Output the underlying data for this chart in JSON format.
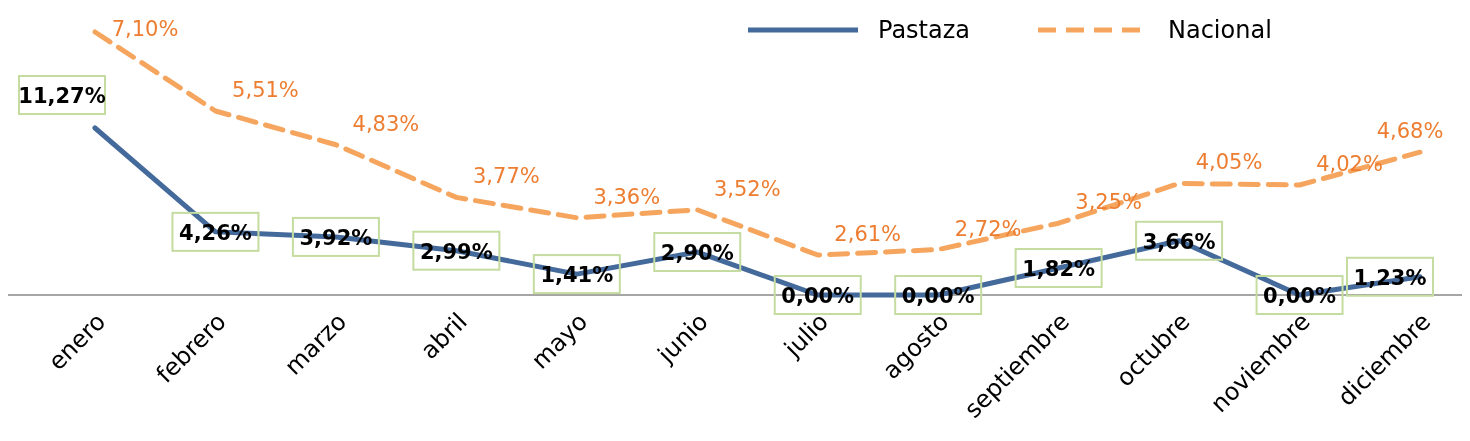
{
  "chart_data": {
    "type": "line",
    "categories": [
      "enero",
      "febrero",
      "marzo",
      "abril",
      "mayo",
      "junio",
      "julio",
      "agosto",
      "septiembre",
      "octubre",
      "noviembre",
      "diciembre"
    ],
    "series": [
      {
        "name": "Pastaza",
        "color": "#44699b",
        "line_style": "solid",
        "values": [
          11.27,
          4.26,
          3.92,
          2.99,
          1.41,
          2.9,
          0.0,
          0.0,
          1.82,
          3.66,
          0.0,
          1.23
        ],
        "value_labels": [
          "11,27%",
          "4,26%",
          "3,92%",
          "2,99%",
          "1,41%",
          "2,90%",
          "0,00%",
          "0,00%",
          "1,82%",
          "3,66%",
          "0,00%",
          "1,23%"
        ]
      },
      {
        "name": "Nacional",
        "color": "#f5a55e",
        "line_style": "dashed",
        "axis": "y2",
        "values": [
          7.1,
          5.51,
          4.83,
          3.77,
          3.36,
          3.52,
          2.61,
          2.72,
          3.25,
          4.05,
          4.02,
          4.68
        ],
        "value_labels": [
          "7,10%",
          "5,51%",
          "4,83%",
          "3,77%",
          "3,36%",
          "3,52%",
          "2,61%",
          "2,72%",
          "3,25%",
          "4,05%",
          "4,02%",
          "4,68%"
        ]
      }
    ],
    "tick_labels": "x",
    "legend": "top right",
    "grid": false,
    "marker": "none"
  }
}
